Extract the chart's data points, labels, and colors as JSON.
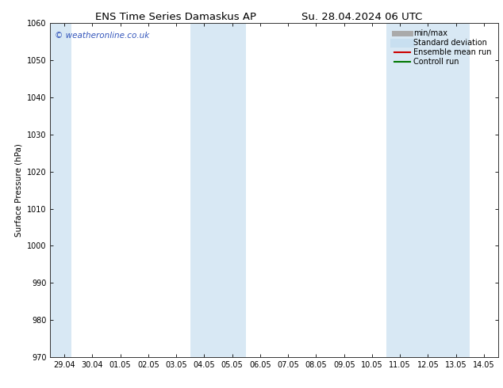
{
  "title_left": "ENS Time Series Damaskus AP",
  "title_right": "Su. 28.04.2024 06 UTC",
  "ylabel": "Surface Pressure (hPa)",
  "ylim": [
    970,
    1060
  ],
  "yticks": [
    970,
    980,
    990,
    1000,
    1010,
    1020,
    1030,
    1040,
    1050,
    1060
  ],
  "xtick_labels": [
    "29.04",
    "30.04",
    "01.05",
    "02.05",
    "03.05",
    "04.05",
    "05.05",
    "06.05",
    "07.05",
    "08.05",
    "09.05",
    "10.05",
    "11.05",
    "12.05",
    "13.05",
    "14.05"
  ],
  "xtick_positions": [
    0,
    1,
    2,
    3,
    4,
    5,
    6,
    7,
    8,
    9,
    10,
    11,
    12,
    13,
    14,
    15
  ],
  "xlim_start": -0.5,
  "xlim_end": 15.5,
  "shaded_bands": [
    {
      "x_start": -0.5,
      "x_end": 0.25
    },
    {
      "x_start": 4.5,
      "x_end": 6.5
    },
    {
      "x_start": 11.5,
      "x_end": 14.5
    }
  ],
  "shade_color": "#d8e8f4",
  "background_color": "#ffffff",
  "watermark_text": "© weatheronline.co.uk",
  "watermark_color": "#3355bb",
  "legend_items": [
    {
      "label": "min/max",
      "color": "#aaaaaa",
      "lw": 5
    },
    {
      "label": "Standard deviation",
      "color": "#c8dff0",
      "lw": 8
    },
    {
      "label": "Ensemble mean run",
      "color": "#cc0000",
      "lw": 1.5
    },
    {
      "label": "Controll run",
      "color": "#007700",
      "lw": 1.5
    }
  ],
  "title_fontsize": 9.5,
  "tick_fontsize": 7,
  "ylabel_fontsize": 7.5,
  "watermark_fontsize": 7.5,
  "legend_fontsize": 7
}
